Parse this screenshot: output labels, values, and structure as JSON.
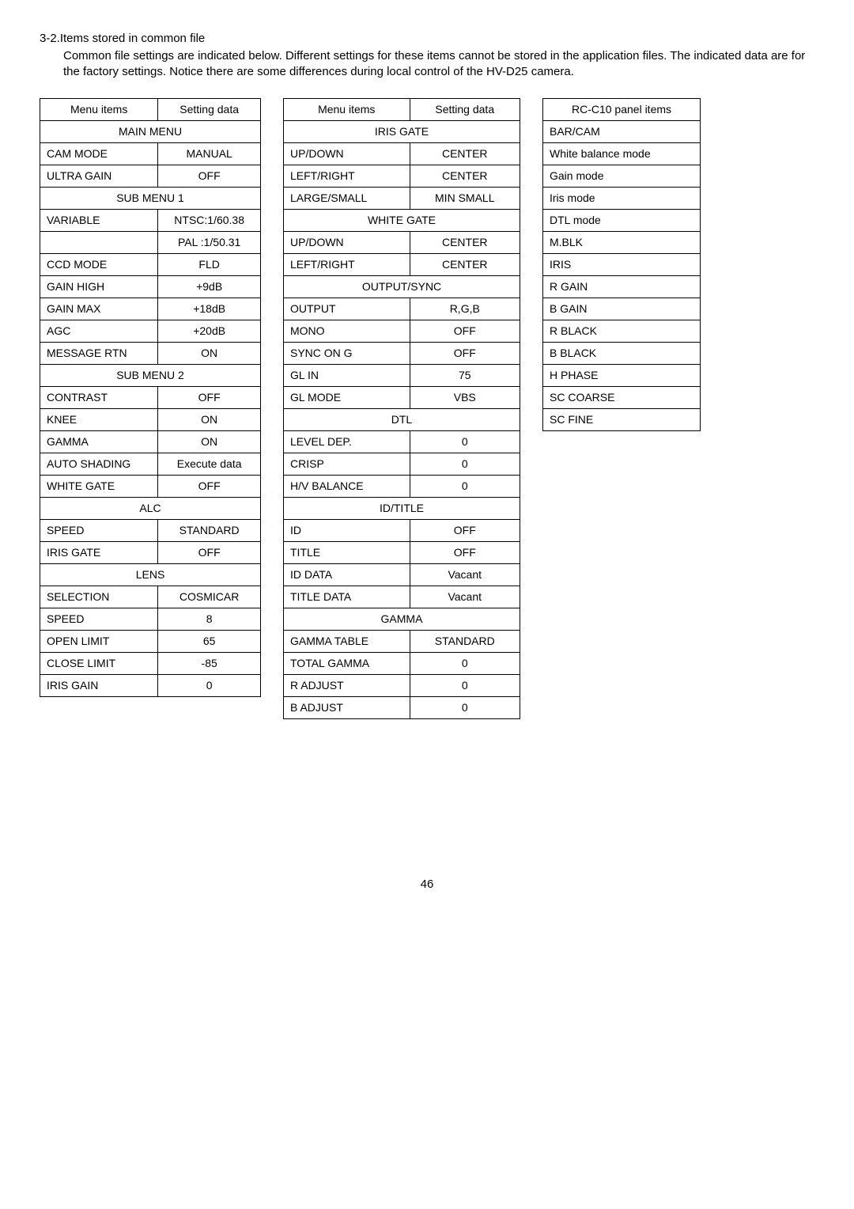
{
  "heading": "3-2.Items stored in common file",
  "intro": "Common file settings are indicated below.  Different settings for these items cannot be stored in the application files.  The indicated data are for the factory settings.  Notice there are some differences during local control of the HV-D25 camera.",
  "table1": {
    "header": {
      "col1": "Menu items",
      "col2": "Setting data"
    },
    "rows": [
      {
        "type": "section",
        "label": "MAIN MENU"
      },
      {
        "type": "data",
        "col1": "CAM MODE",
        "col2": "MANUAL"
      },
      {
        "type": "data",
        "col1": "ULTRA GAIN",
        "col2": "OFF"
      },
      {
        "type": "section",
        "label": "SUB MENU 1"
      },
      {
        "type": "data",
        "col1": "VARIABLE",
        "col2": "NTSC:1/60.38"
      },
      {
        "type": "data",
        "col1": "",
        "col2": "PAL :1/50.31"
      },
      {
        "type": "data",
        "col1": "CCD MODE",
        "col2": "FLD"
      },
      {
        "type": "data",
        "col1": "GAIN HIGH",
        "col2": "+9dB"
      },
      {
        "type": "data",
        "col1": "GAIN MAX",
        "col2": "+18dB"
      },
      {
        "type": "data",
        "col1": "AGC",
        "col2": "+20dB"
      },
      {
        "type": "data",
        "col1": "MESSAGE RTN",
        "col2": "ON"
      },
      {
        "type": "section",
        "label": "SUB MENU 2"
      },
      {
        "type": "data",
        "col1": "CONTRAST",
        "col2": "OFF"
      },
      {
        "type": "data",
        "col1": "KNEE",
        "col2": "ON"
      },
      {
        "type": "data",
        "col1": "GAMMA",
        "col2": "ON"
      },
      {
        "type": "data",
        "col1": "AUTO SHADING",
        "col2": "Execute data"
      },
      {
        "type": "data",
        "col1": "WHITE GATE",
        "col2": "OFF"
      },
      {
        "type": "section",
        "label": "ALC"
      },
      {
        "type": "data",
        "col1": "SPEED",
        "col2": "STANDARD"
      },
      {
        "type": "data",
        "col1": "IRIS GATE",
        "col2": "OFF"
      },
      {
        "type": "section",
        "label": "LENS"
      },
      {
        "type": "data",
        "col1": "SELECTION",
        "col2": "COSMICAR"
      },
      {
        "type": "data",
        "col1": "SPEED",
        "col2": "8"
      },
      {
        "type": "data",
        "col1": "OPEN LIMIT",
        "col2": "65"
      },
      {
        "type": "data",
        "col1": "CLOSE LIMIT",
        "col2": "-85"
      },
      {
        "type": "data",
        "col1": "IRIS GAIN",
        "col2": "0"
      }
    ]
  },
  "table2": {
    "header": {
      "col1": "Menu items",
      "col2": "Setting data"
    },
    "rows": [
      {
        "type": "section",
        "label": "IRIS GATE"
      },
      {
        "type": "data",
        "col1": "UP/DOWN",
        "col2": "CENTER"
      },
      {
        "type": "data",
        "col1": "LEFT/RIGHT",
        "col2": "CENTER"
      },
      {
        "type": "data",
        "col1": "LARGE/SMALL",
        "col2": "MIN SMALL"
      },
      {
        "type": "section",
        "label": "WHITE GATE"
      },
      {
        "type": "data",
        "col1": "UP/DOWN",
        "col2": "CENTER"
      },
      {
        "type": "data",
        "col1": "LEFT/RIGHT",
        "col2": "CENTER"
      },
      {
        "type": "section",
        "label": "OUTPUT/SYNC"
      },
      {
        "type": "data",
        "col1": "OUTPUT",
        "col2": "R,G,B"
      },
      {
        "type": "data",
        "col1": "MONO",
        "col2": "OFF"
      },
      {
        "type": "data",
        "col1": "SYNC ON G",
        "col2": "OFF"
      },
      {
        "type": "data",
        "col1": "GL IN",
        "col2": "75"
      },
      {
        "type": "data",
        "col1": "GL MODE",
        "col2": "VBS"
      },
      {
        "type": "section",
        "label": "DTL"
      },
      {
        "type": "data",
        "col1": "LEVEL DEP.",
        "col2": "0"
      },
      {
        "type": "data",
        "col1": "CRISP",
        "col2": "0"
      },
      {
        "type": "data",
        "col1": "H/V BALANCE",
        "col2": "0"
      },
      {
        "type": "section",
        "label": "ID/TITLE"
      },
      {
        "type": "data",
        "col1": "ID",
        "col2": "OFF"
      },
      {
        "type": "data",
        "col1": "TITLE",
        "col2": "OFF"
      },
      {
        "type": "data",
        "col1": "ID DATA",
        "col2": "Vacant"
      },
      {
        "type": "data",
        "col1": "TITLE DATA",
        "col2": "Vacant"
      },
      {
        "type": "section",
        "label": "GAMMA"
      },
      {
        "type": "data",
        "col1": "GAMMA TABLE",
        "col2": "STANDARD"
      },
      {
        "type": "data",
        "col1": "TOTAL GAMMA",
        "col2": "0"
      },
      {
        "type": "data",
        "col1": "R ADJUST",
        "col2": "0"
      },
      {
        "type": "data",
        "col1": "B ADJUST",
        "col2": "0"
      }
    ]
  },
  "table3": {
    "header": "RC-C10 panel items",
    "rows": [
      "BAR/CAM",
      "White balance mode",
      "Gain mode",
      "Iris mode",
      "DTL mode",
      "M.BLK",
      "IRIS",
      "R GAIN",
      "B GAIN",
      "R BLACK",
      "B BLACK",
      "H PHASE",
      "SC COARSE",
      "SC FINE"
    ]
  },
  "pageNumber": "46"
}
